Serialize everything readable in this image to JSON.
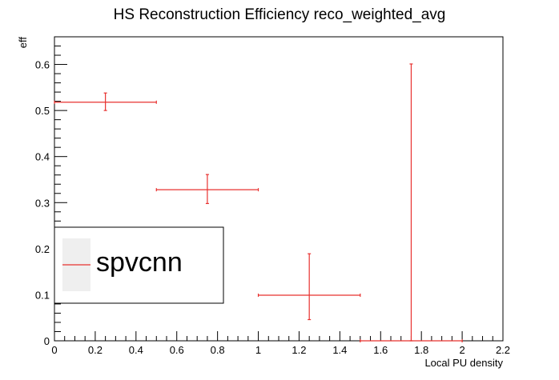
{
  "chart_data": {
    "type": "scatter",
    "title": "HS Reconstruction Efficiency reco_weighted_avg",
    "xlabel": "Local PU density",
    "ylabel": "eff",
    "xlim": [
      0,
      2.2
    ],
    "ylim": [
      0,
      0.66
    ],
    "x_ticks": [
      "0",
      "0.2",
      "0.4",
      "0.6",
      "0.8",
      "1",
      "1.2",
      "1.4",
      "1.6",
      "1.8",
      "2",
      "2.2"
    ],
    "y_ticks": [
      "0",
      "0.1",
      "0.2",
      "0.3",
      "0.4",
      "0.5",
      "0.6"
    ],
    "grid": false,
    "legend_position": "middle-left",
    "series": [
      {
        "name": "spvcnn",
        "color": "#e8312f",
        "points": [
          {
            "x": 0.25,
            "xerr": 0.25,
            "y": 0.518,
            "yerr_low": 0.018,
            "yerr_high": 0.02
          },
          {
            "x": 0.75,
            "xerr": 0.25,
            "y": 0.328,
            "yerr_low": 0.03,
            "yerr_high": 0.033
          },
          {
            "x": 1.25,
            "xerr": 0.25,
            "y": 0.099,
            "yerr_low": 0.053,
            "yerr_high": 0.09
          },
          {
            "x": 1.75,
            "xerr": 0.25,
            "y": 0.0,
            "yerr_low": 0.0,
            "yerr_high": 0.601
          }
        ]
      }
    ]
  }
}
